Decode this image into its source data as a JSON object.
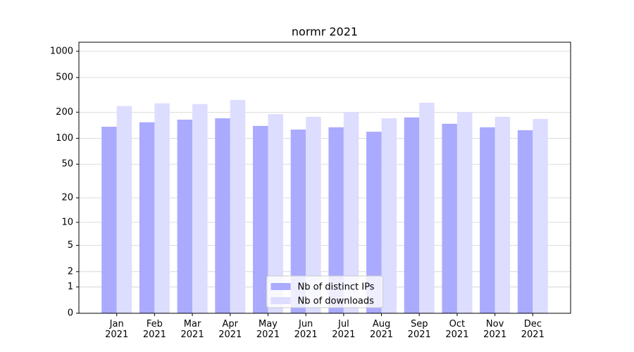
{
  "chart_data": {
    "type": "bar",
    "title": "normr 2021",
    "categories": [
      "Jan\n2021",
      "Feb\n2021",
      "Mar\n2021",
      "Apr\n2021",
      "May\n2021",
      "Jun\n2021",
      "Jul\n2021",
      "Aug\n2021",
      "Sep\n2021",
      "Oct\n2021",
      "Nov\n2021",
      "Dec\n2021"
    ],
    "series": [
      {
        "name": "Nb of distinct IPs",
        "color": "#aaaaff",
        "values": [
          136,
          153,
          164,
          170,
          139,
          126,
          134,
          119,
          174,
          147,
          134,
          124
        ]
      },
      {
        "name": "Nb of downloads",
        "color": "#ddddff",
        "values": [
          235,
          253,
          248,
          277,
          190,
          177,
          201,
          170,
          257,
          201,
          177,
          167
        ]
      }
    ],
    "yscale": "log1p",
    "ylim": [
      0,
      1270
    ],
    "yticks": [
      0,
      1,
      2,
      5,
      10,
      20,
      50,
      100,
      200,
      500,
      1000
    ],
    "grid": true,
    "legend": "lower center"
  }
}
